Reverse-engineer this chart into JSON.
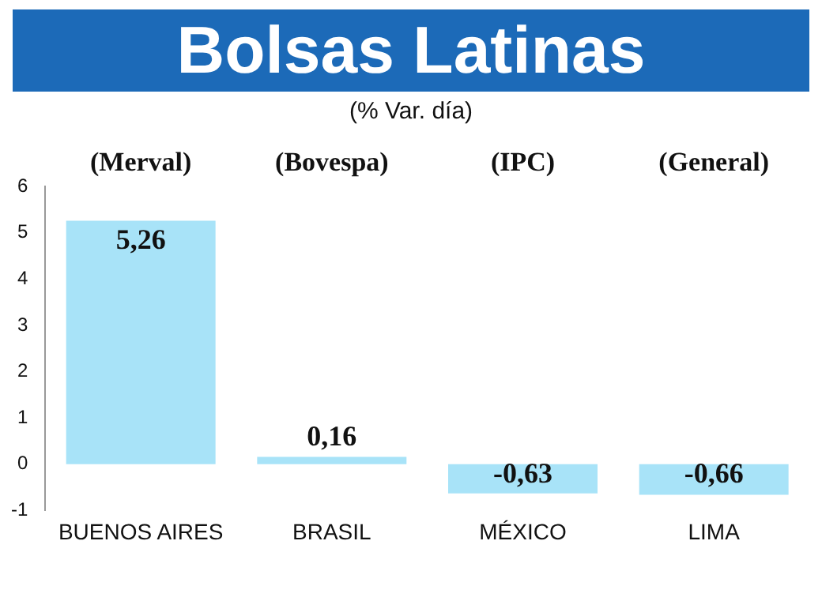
{
  "chart_data": {
    "type": "bar",
    "title": "Bolsas Latinas",
    "subtitle": "(% Var. día)",
    "categories": [
      "BUENOS AIRES",
      "BRASIL",
      "MÉXICO",
      "LIMA"
    ],
    "values": [
      5.26,
      0.16,
      -0.63,
      -0.66
    ],
    "value_labels": [
      "5,26",
      "0,16",
      "-0,63",
      "-0,66"
    ],
    "color": "#a8e3f8",
    "ylim": [
      -1,
      6
    ],
    "yticks": [
      -1,
      0,
      1,
      2,
      3,
      4,
      5,
      6
    ],
    "grid": false,
    "legend": false,
    "annotations": [
      "(Merval)",
      "(Bovespa)",
      "(IPC)",
      "(General)"
    ]
  }
}
